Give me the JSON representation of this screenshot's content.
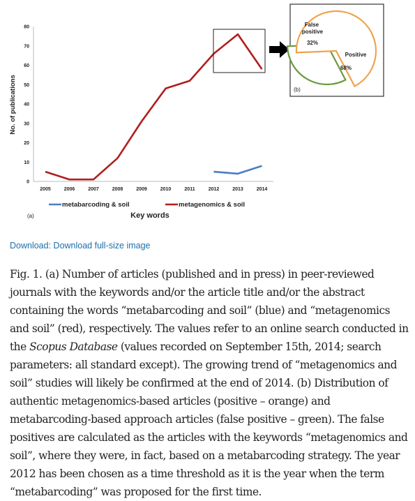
{
  "figure": {
    "panel_a_label": "(a)",
    "panel_b_label": "(b)"
  },
  "download": {
    "label": "Download: Download full-size image"
  },
  "caption": {
    "label": "Fig. 1.",
    "part1": "(a) Number of articles (published and in press) in peer-reviewed journals with the keywords and/or the article title and/or the abstract containing the words “metabarcoding and soil” (blue) and “metagenomics and soil” (red), respectively. The values refer to an online search conducted in the ",
    "italic": "Scopus Database",
    "part2": " (values recorded on September 15th, 2014; search parameters: all standard except). The growing trend of “metagenomics and soil” studies will likely be confirmed at the end of 2014. (b) Distribution of authentic metagenomics-based articles (positive – orange) and metabarcoding-based approach articles (false positive – green). The false positives are calculated as the articles with the keywords “metagenomics and soil”, where they were, in fact, based on a metabarcoding strategy. The year 2012 has been chosen as a time threshold as it is the year when the term “metabarcoding” was proposed for the first time."
  },
  "chart_data": [
    {
      "type": "line",
      "x": [
        2005,
        2006,
        2007,
        2008,
        2009,
        2010,
        2011,
        2012,
        2013,
        2014
      ],
      "series": [
        {
          "name": "metabarcoding & soil",
          "color": "#4a7ec6",
          "values": [
            null,
            null,
            null,
            null,
            null,
            null,
            null,
            5,
            4,
            8
          ]
        },
        {
          "name": "metagenomics & soil",
          "color": "#b01e1e",
          "values": [
            5,
            1,
            1,
            12,
            31,
            48,
            52,
            66,
            76,
            58
          ]
        }
      ],
      "xlabel": "Key words",
      "ylabel": "No. of publications",
      "ylim": [
        0,
        80
      ],
      "yticks": [
        0,
        10,
        20,
        30,
        40,
        50,
        60,
        70,
        80
      ],
      "legend": "bottom",
      "grid": false
    },
    {
      "type": "pie",
      "slices": [
        {
          "label": "False positive",
          "value": 32,
          "value_label": "32%",
          "color": "#6a9a3a"
        },
        {
          "label": "Positive",
          "value": 68,
          "value_label": "68%",
          "color": "#f0a24a"
        }
      ]
    }
  ]
}
